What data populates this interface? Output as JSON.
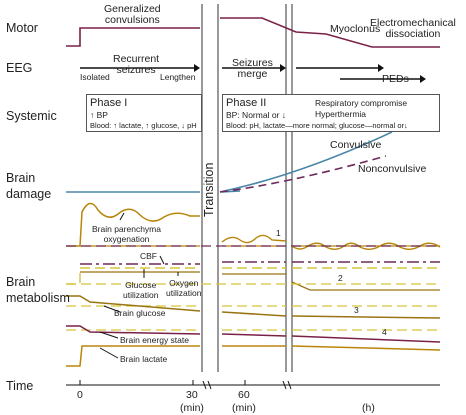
{
  "rows": {
    "motor": "Motor",
    "eeg": "EEG",
    "systemic": "Systemic",
    "brain_damage": "Brain\ndamage",
    "brain_metabolism": "Brain\nmetabolism"
  },
  "motor": {
    "generalized": "Generalized\nconvulsions",
    "myoclonus": "Myoclonus",
    "electromechanical": "Electromechanical\ndissociation"
  },
  "eeg": {
    "recurrent": "Recurrent\nseizures",
    "isolated": "Isolated",
    "lengthen": "Lengthen",
    "seizures_merge": "Seizures\nmerge",
    "peds": "PEDs"
  },
  "phase1": {
    "title": "Phase I",
    "line1": "↑ BP",
    "line2": "Blood: ↑ lactate, ↑ glucose, ↓ pH"
  },
  "phase2": {
    "title": "Phase II",
    "line1": "BP: Normal or ↓",
    "line2": "Blood: pH, lactate—more normal; glucose—normal or↓",
    "resp": "Respiratory compromise",
    "hyper": "Hyperthermia"
  },
  "transition": "Transition",
  "damage": {
    "convulsive": "Convulsive",
    "nonconvulsive": "Nonconvulsive"
  },
  "metabolism": {
    "parenchyma": "Brain parenchyma\noxygenation",
    "cbf": "CBF",
    "glucose_util": "Glucose\nutilization",
    "oxygen_util": "Oxygen\nutilization",
    "brain_glucose": "Brain glucose",
    "energy_state": "Brain energy state",
    "lactate": "Brain lactate",
    "n1": "1",
    "n2": "2",
    "n3": "3",
    "n4": "4"
  },
  "time": {
    "label": "Time",
    "t0": "0",
    "t30": "30",
    "t60": "60",
    "u1": "(min)",
    "u2": "(min)",
    "u3": "(h)"
  },
  "colors": {
    "maroon": "#7a2148",
    "olive": "#b8860b",
    "olive_dark": "#9a7412",
    "blue": "#4a86a8",
    "purple": "#6e2a5c",
    "yellow": "#d4c53a",
    "black": "#111111"
  }
}
